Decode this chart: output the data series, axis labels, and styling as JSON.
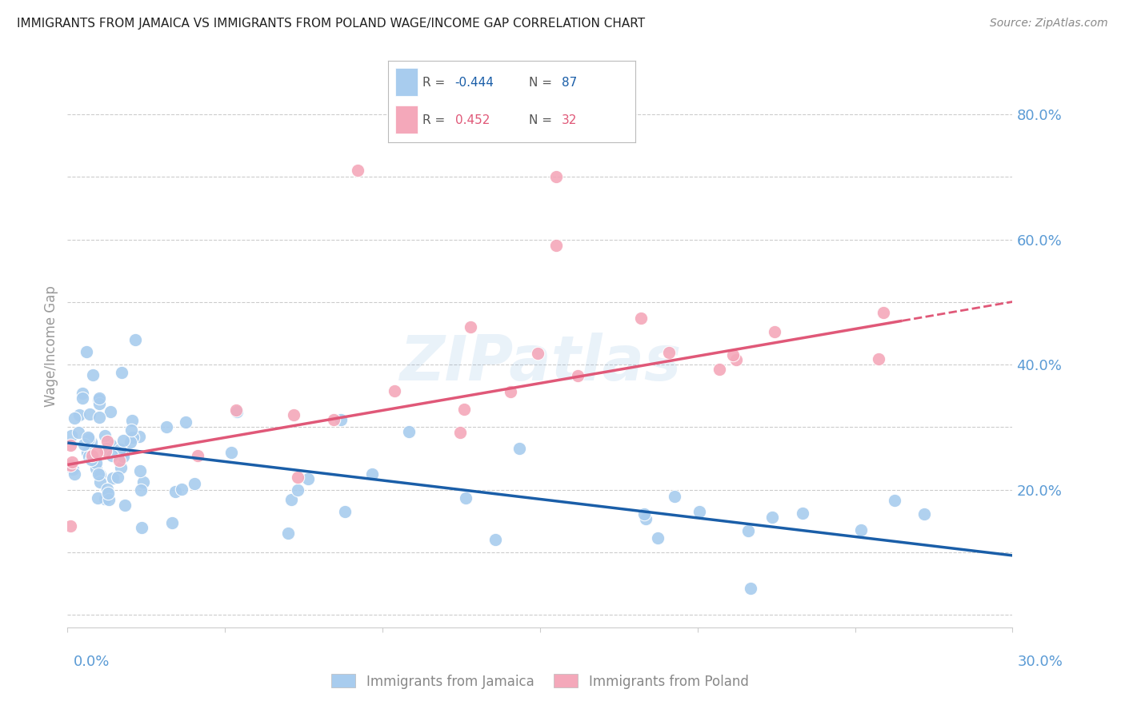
{
  "title": "IMMIGRANTS FROM JAMAICA VS IMMIGRANTS FROM POLAND WAGE/INCOME GAP CORRELATION CHART",
  "source": "Source: ZipAtlas.com",
  "ylabel": "Wage/Income Gap",
  "xlim": [
    0.0,
    0.3
  ],
  "ylim": [
    -0.02,
    0.88
  ],
  "jamaica_R": -0.444,
  "jamaica_N": 87,
  "poland_R": 0.452,
  "poland_N": 32,
  "jamaica_color": "#A8CCEE",
  "poland_color": "#F4A8BA",
  "jamaica_line_color": "#1A5EA8",
  "poland_line_color": "#E05878",
  "watermark": "ZIPatlas",
  "background_color": "#FFFFFF",
  "title_fontsize": 11,
  "axis_label_color": "#5B9BD5",
  "grid_color": "#CCCCCC",
  "legend_r1": "R = -0.444",
  "legend_n1": "N = 87",
  "legend_r2": "R =  0.452",
  "legend_n2": "N = 32"
}
